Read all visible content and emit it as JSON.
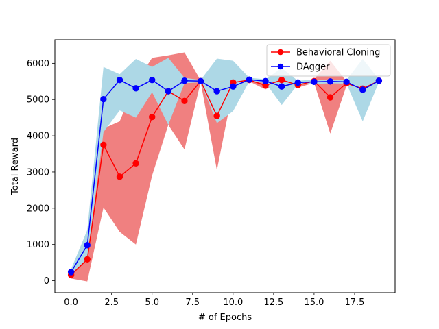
{
  "chart_data": {
    "type": "line",
    "title": "",
    "xlabel": "# of Epochs",
    "ylabel": "Total Reward",
    "xlim": [
      -1.0,
      20.0
    ],
    "ylim": [
      -330,
      6650
    ],
    "xticks": [
      0.0,
      2.5,
      5.0,
      7.5,
      10.0,
      12.5,
      15.0,
      17.5
    ],
    "xtick_labels": [
      "0.0",
      "2.5",
      "5.0",
      "7.5",
      "10.0",
      "12.5",
      "15.0",
      "17.5"
    ],
    "yticks": [
      0,
      1000,
      2000,
      3000,
      4000,
      5000,
      6000
    ],
    "ytick_labels": [
      "0",
      "1000",
      "2000",
      "3000",
      "4000",
      "5000",
      "6000"
    ],
    "grid": false,
    "legend_position": "upper right",
    "x": [
      0,
      1,
      2,
      3,
      4,
      5,
      6,
      7,
      8,
      9,
      10,
      11,
      12,
      13,
      14,
      15,
      16,
      17,
      18,
      19
    ],
    "series": [
      {
        "name": "Behavioral Cloning",
        "color": "#ff0000",
        "band_color": "#f08080",
        "values": [
          160,
          590,
          3750,
          2870,
          3240,
          4520,
          5230,
          4960,
          5510,
          4550,
          5470,
          5540,
          5390,
          5540,
          5400,
          5510,
          5060,
          5450,
          5300,
          5520
        ],
        "lower": [
          60,
          -20,
          2020,
          1350,
          1000,
          2900,
          4300,
          3620,
          5480,
          3050,
          5300,
          5500,
          5280,
          5500,
          5330,
          5460,
          4060,
          5380,
          5230,
          5480
        ],
        "upper": [
          260,
          1210,
          4200,
          4400,
          5470,
          6150,
          6220,
          6300,
          5530,
          6100,
          5640,
          5580,
          5500,
          5580,
          5470,
          5560,
          6070,
          5500,
          5380,
          5560
        ]
      },
      {
        "name": "DAgger",
        "color": "#0000ff",
        "band_color": "#add8e6",
        "values": [
          240,
          980,
          5010,
          5540,
          5310,
          5540,
          5230,
          5520,
          5510,
          5230,
          5360,
          5550,
          5510,
          5360,
          5470,
          5490,
          5500,
          5490,
          5270,
          5520
        ],
        "lower": [
          160,
          600,
          4100,
          4700,
          4500,
          5200,
          4300,
          5450,
          5480,
          4350,
          4680,
          5500,
          5460,
          4850,
          5420,
          5430,
          5450,
          5440,
          4400,
          5480
        ],
        "upper": [
          320,
          1400,
          5900,
          5700,
          6120,
          5900,
          6150,
          5600,
          5540,
          6130,
          6070,
          5600,
          5560,
          5870,
          5520,
          5550,
          5550,
          5540,
          6120,
          5560
        ]
      }
    ]
  }
}
